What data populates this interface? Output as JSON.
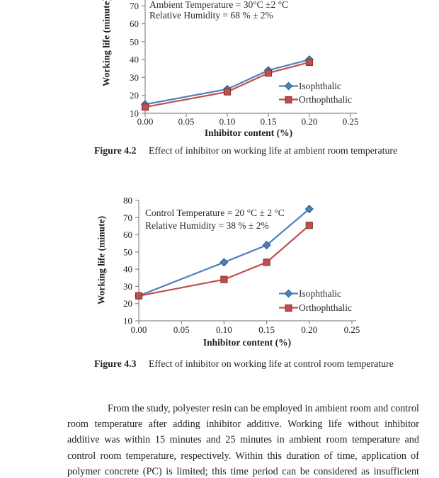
{
  "figures": [
    {
      "label": "Figure 4.2",
      "caption": "Effect of inhibitor on working life at ambient room temperature"
    },
    {
      "label": "Figure 4.3",
      "caption": "Effect of inhibitor on working life at control room temperature"
    }
  ],
  "chart_data": [
    {
      "type": "line",
      "annotation": [
        "Ambient Temperature = 30°C ±2 °C",
        "Relative Humidity = 68 % ± 2%"
      ],
      "xlabel": "Inhibitor content (%)",
      "ylabel": "Working life (minute)",
      "x": [
        0,
        0.1,
        0.15,
        0.2
      ],
      "series": [
        {
          "name": "Isophthalic",
          "marker": "diamond",
          "color": "#4f81bd",
          "edge": "#2f5b8f",
          "values": [
            15,
            23.5,
            34,
            40
          ]
        },
        {
          "name": "Orthophthalic",
          "marker": "square",
          "color": "#c0504d",
          "edge": "#8e3432",
          "values": [
            13.5,
            22,
            32.5,
            38.5
          ]
        }
      ],
      "xlim": [
        0,
        0.25
      ],
      "ylim": [
        10,
        80
      ],
      "xticks": {
        "labels": [
          "0.00",
          "0.05",
          "0.10",
          "0.15",
          "0.20",
          "0.25"
        ],
        "values": [
          0,
          0.05,
          0.1,
          0.15,
          0.2,
          0.25
        ]
      },
      "yticks": [
        10,
        20,
        30,
        40,
        50,
        60,
        70
      ],
      "legend_position": "inside-right",
      "grid": "off"
    },
    {
      "type": "line",
      "annotation": [
        "Control Temperature = 20 °C ± 2 °C",
        "Relative Humidity = 38 % ± 2%"
      ],
      "xlabel": "Inhibitor content (%)",
      "ylabel": "Working life (minute)",
      "x": [
        0,
        0.1,
        0.15,
        0.2
      ],
      "series": [
        {
          "name": "Isophthalic",
          "marker": "diamond",
          "color": "#4f81bd",
          "edge": "#2f5b8f",
          "values": [
            24.5,
            44,
            54,
            75
          ]
        },
        {
          "name": "Orthophthalic",
          "marker": "square",
          "color": "#c0504d",
          "edge": "#8e3432",
          "values": [
            24.5,
            34,
            44,
            65.5
          ]
        }
      ],
      "xlim": [
        0,
        0.25
      ],
      "ylim": [
        10,
        80
      ],
      "xticks": {
        "labels": [
          "0.00",
          "0.05",
          "0.10",
          "0.15",
          "0.20",
          "0.25"
        ],
        "values": [
          0,
          0.05,
          0.1,
          0.15,
          0.2,
          0.25
        ]
      },
      "yticks": [
        10,
        20,
        30,
        40,
        50,
        60,
        70,
        80
      ],
      "legend_position": "inside-right",
      "grid": "off"
    }
  ],
  "body": {
    "paragraph": "From the study, polyester resin can be employed in ambient room and control room temperature after adding inhibitor additive.  Working life without inhibitor additive was within 15 minutes and 25 minutes in ambient room temperature and control room temperature, respectively. Within this duration of time, application of polymer concrete (PC) is limited; this time period can be considered as insufficient"
  }
}
